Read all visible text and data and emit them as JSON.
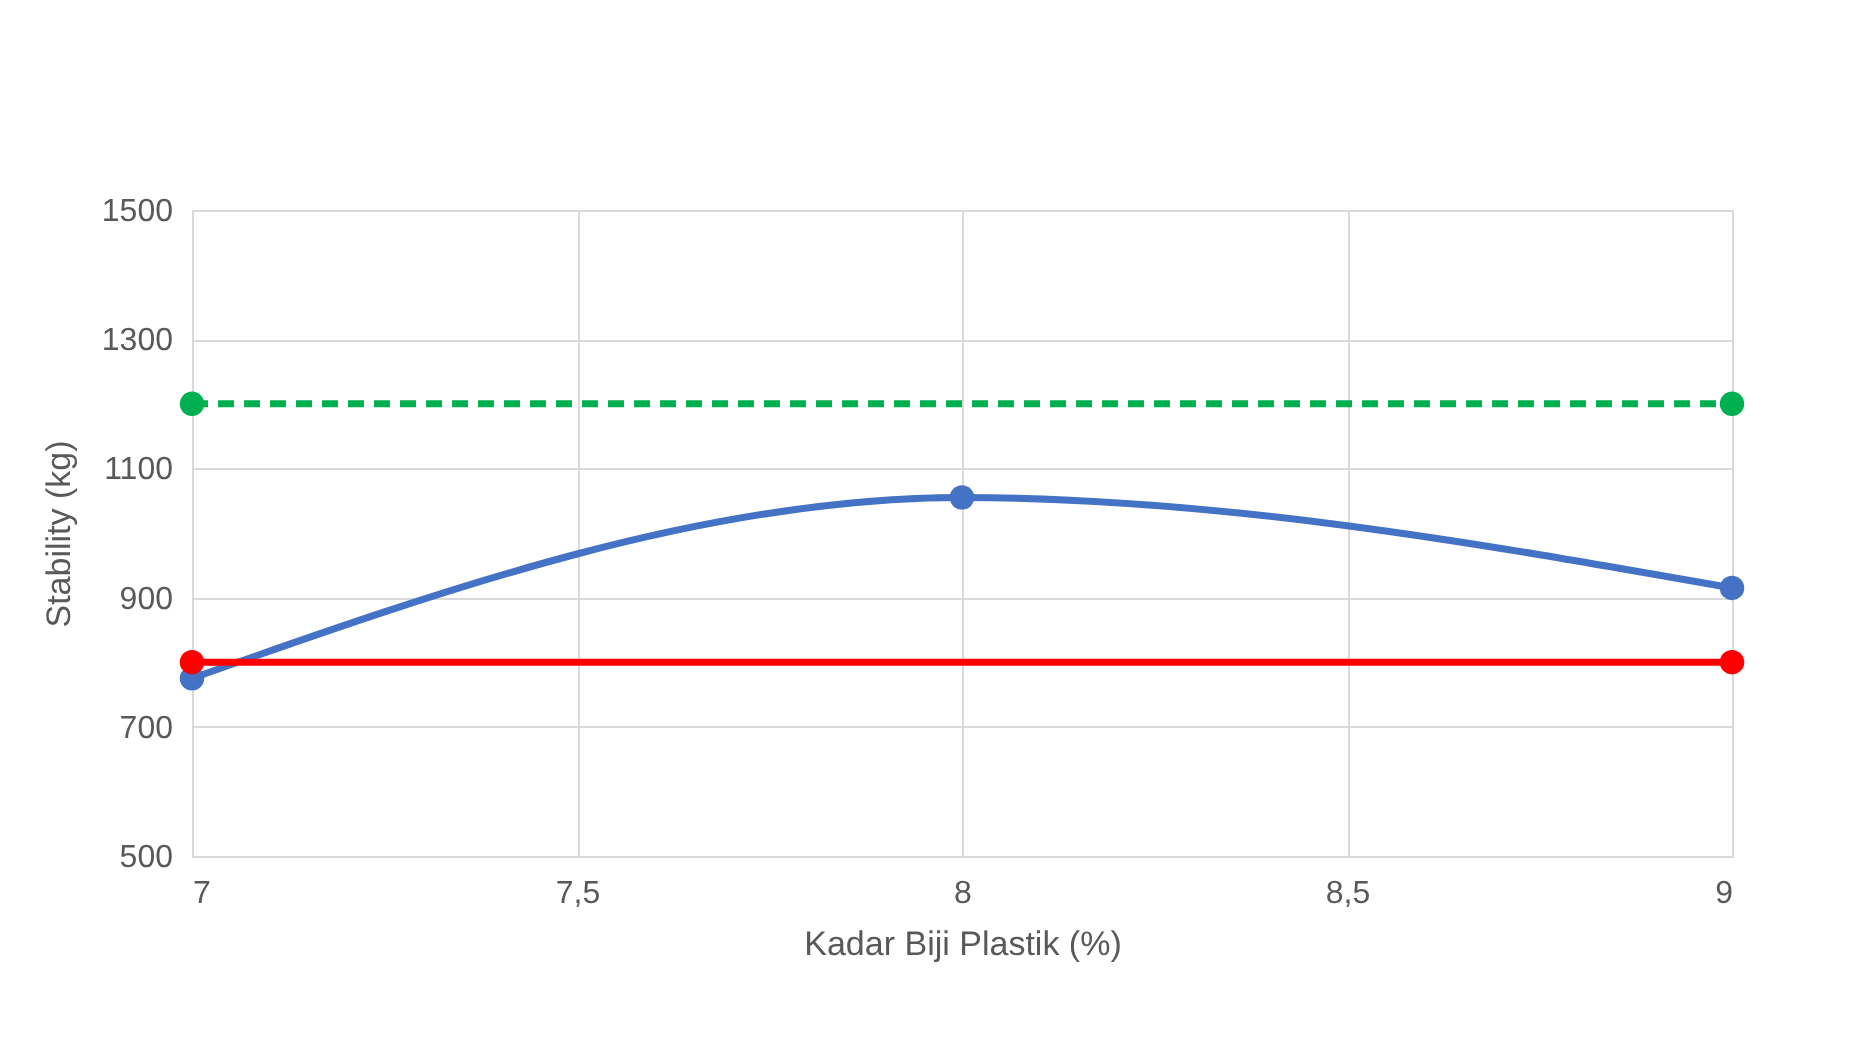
{
  "chart_data": {
    "type": "line",
    "xlabel": "Kadar Biji Plastik (%)",
    "ylabel": "Stability (kg)",
    "xlim": [
      7,
      9
    ],
    "xticks": [
      7,
      {
        "value": 7.5,
        "label": "7,5"
      },
      8,
      {
        "value": 8.5,
        "label": "8,5"
      },
      9
    ],
    "ylim": [
      500,
      1500
    ],
    "yticks": [
      500,
      700,
      900,
      1100,
      1300,
      1500
    ],
    "grid": true,
    "marker": "circle",
    "series": [
      {
        "color": "#4472c4",
        "x": [
          7,
          8,
          9
        ],
        "values": [
          775,
          1055,
          915
        ],
        "line_style": "solid"
      },
      {
        "color": "#00b050",
        "x": [
          7,
          9
        ],
        "values": [
          1200,
          1200
        ],
        "line_style": "dashed"
      },
      {
        "color": "#ff0000",
        "x": [
          7,
          9
        ],
        "values": [
          800,
          800
        ],
        "line_style": "solid"
      }
    ]
  }
}
